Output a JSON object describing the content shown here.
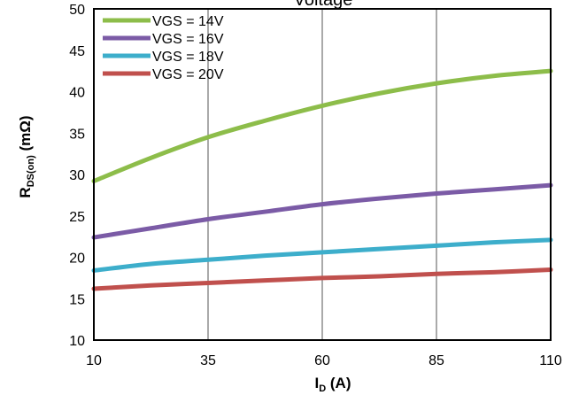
{
  "chart_data": {
    "type": "line",
    "title": "Voltage",
    "xlabel": {
      "main": "I",
      "sub": "D",
      "unit": " (A)"
    },
    "ylabel": {
      "main": "R",
      "sub": "DS(on)",
      "unit": " (mΩ)"
    },
    "xlim": [
      10,
      110
    ],
    "ylim": [
      10,
      50
    ],
    "x_ticks": [
      10,
      35,
      60,
      85,
      110
    ],
    "y_ticks": [
      10,
      15,
      20,
      25,
      30,
      35,
      40,
      45,
      50
    ],
    "grid": "vertical",
    "legend_position": "top-left",
    "series": [
      {
        "name": "VGS = 14V",
        "color": "#8DBD4A",
        "x": [
          10,
          22.5,
          35,
          47.5,
          60,
          72.5,
          85,
          97.5,
          110
        ],
        "y": [
          29.2,
          32.0,
          34.5,
          36.5,
          38.3,
          39.8,
          41.0,
          41.9,
          42.5
        ]
      },
      {
        "name": "VGS = 16V",
        "color": "#7B5BA6",
        "x": [
          10,
          22.5,
          35,
          47.5,
          60,
          72.5,
          85,
          97.5,
          110
        ],
        "y": [
          22.4,
          23.5,
          24.6,
          25.5,
          26.4,
          27.1,
          27.7,
          28.2,
          28.7
        ]
      },
      {
        "name": "VGS = 18V",
        "color": "#3DAECB",
        "x": [
          10,
          22.5,
          35,
          47.5,
          60,
          72.5,
          85,
          97.5,
          110
        ],
        "y": [
          18.4,
          19.2,
          19.7,
          20.2,
          20.6,
          21.0,
          21.4,
          21.8,
          22.1
        ]
      },
      {
        "name": "VGS = 20V",
        "color": "#C0504D",
        "x": [
          10,
          22.5,
          35,
          47.5,
          60,
          72.5,
          85,
          97.5,
          110
        ],
        "y": [
          16.2,
          16.6,
          16.9,
          17.2,
          17.5,
          17.7,
          18.0,
          18.2,
          18.5
        ]
      }
    ]
  }
}
